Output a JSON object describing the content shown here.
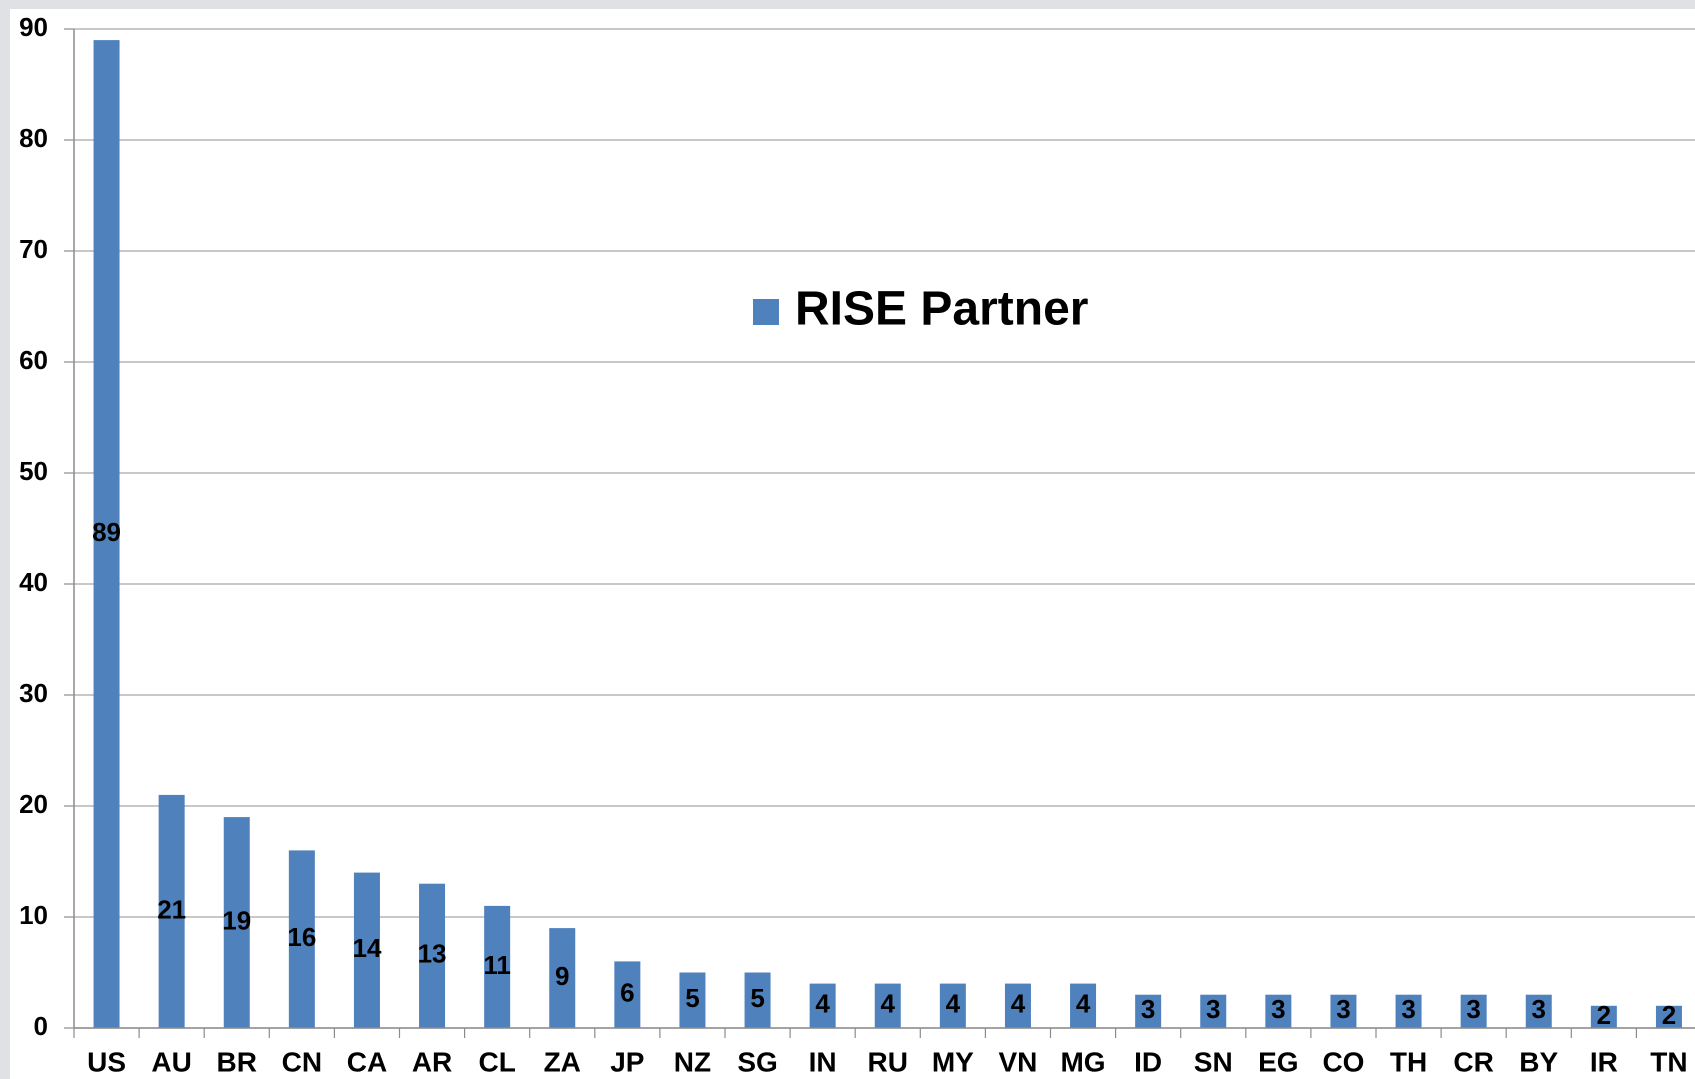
{
  "chart_data": {
    "type": "bar",
    "categories": [
      "US",
      "AU",
      "BR",
      "CN",
      "CA",
      "AR",
      "CL",
      "ZA",
      "JP",
      "NZ",
      "SG",
      "IN",
      "RU",
      "MY",
      "VN",
      "MG",
      "ID",
      "SN",
      "EG",
      "CO",
      "TH",
      "CR",
      "BY",
      "IR",
      "TN"
    ],
    "series": [
      {
        "name": "RISE Partner",
        "color": "#4f81bd",
        "values": [
          89,
          21,
          19,
          16,
          14,
          13,
          11,
          9,
          6,
          5,
          5,
          4,
          4,
          4,
          4,
          4,
          3,
          3,
          3,
          3,
          3,
          3,
          3,
          2,
          2
        ]
      }
    ],
    "ylim": [
      0,
      90
    ],
    "yticks": [
      0,
      10,
      20,
      30,
      40,
      50,
      60,
      70,
      80,
      90
    ],
    "grid": true,
    "legend": "center"
  }
}
